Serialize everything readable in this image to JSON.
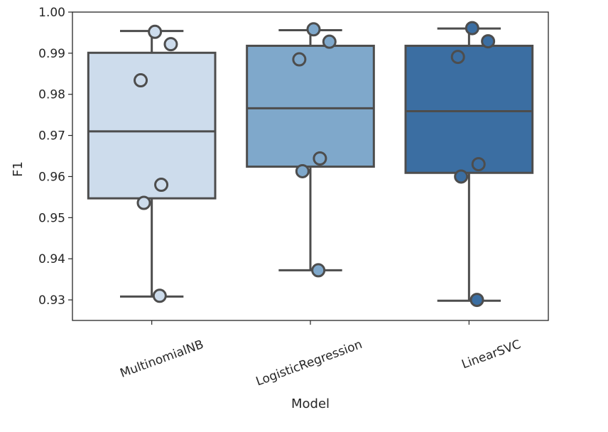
{
  "chart_data": {
    "type": "box",
    "xlabel": "Model",
    "ylabel": "F1",
    "ylim": [
      0.925,
      1.0
    ],
    "yticks": [
      "0.93",
      "0.94",
      "0.95",
      "0.96",
      "0.97",
      "0.98",
      "0.99",
      "1.00"
    ],
    "grid": false,
    "categories": [
      "MultinomialNB",
      "LogisticRegression",
      "LinearSVC"
    ],
    "colors": [
      "#cddcec",
      "#7fa8cb",
      "#3b6ea2"
    ],
    "series": [
      {
        "box": {
          "whisker_low": 0.9308,
          "q1": 0.9547,
          "median": 0.971,
          "q3": 0.9901,
          "whisker_high": 0.9954
        },
        "points": [
          0.9952,
          0.9922,
          0.9834,
          0.958,
          0.9536,
          0.931
        ]
      },
      {
        "box": {
          "whisker_low": 0.9372,
          "q1": 0.9624,
          "median": 0.9766,
          "q3": 0.9918,
          "whisker_high": 0.9956
        },
        "points": [
          0.9958,
          0.9928,
          0.9885,
          0.9644,
          0.9613,
          0.9372
        ]
      },
      {
        "box": {
          "whisker_low": 0.9298,
          "q1": 0.9609,
          "median": 0.9759,
          "q3": 0.9918,
          "whisker_high": 0.996
        },
        "points": [
          0.9961,
          0.9929,
          0.9891,
          0.963,
          0.96,
          0.93
        ]
      }
    ]
  }
}
